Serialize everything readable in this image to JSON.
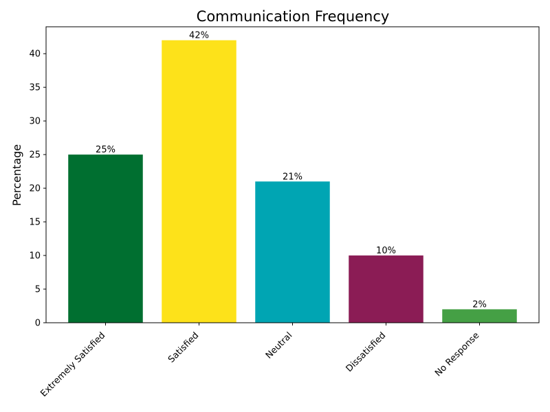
{
  "chart_data": {
    "type": "bar",
    "title": "Communication Frequency",
    "xlabel": "",
    "ylabel": "Percentage",
    "categories": [
      "Extremely Satisfied",
      "Satisfied",
      "Neutral",
      "Dissatisfied",
      "No Response"
    ],
    "values": [
      25,
      42,
      21,
      10,
      2
    ],
    "data_labels": [
      "25%",
      "42%",
      "21%",
      "10%",
      "2%"
    ],
    "colors": [
      "#006f30",
      "#fde21a",
      "#00a5b3",
      "#8b1c55",
      "#45a045"
    ],
    "ylim": [
      0,
      44
    ],
    "yticks": [
      0,
      5,
      10,
      15,
      20,
      25,
      30,
      35,
      40
    ],
    "grid": false,
    "legend": "none"
  }
}
